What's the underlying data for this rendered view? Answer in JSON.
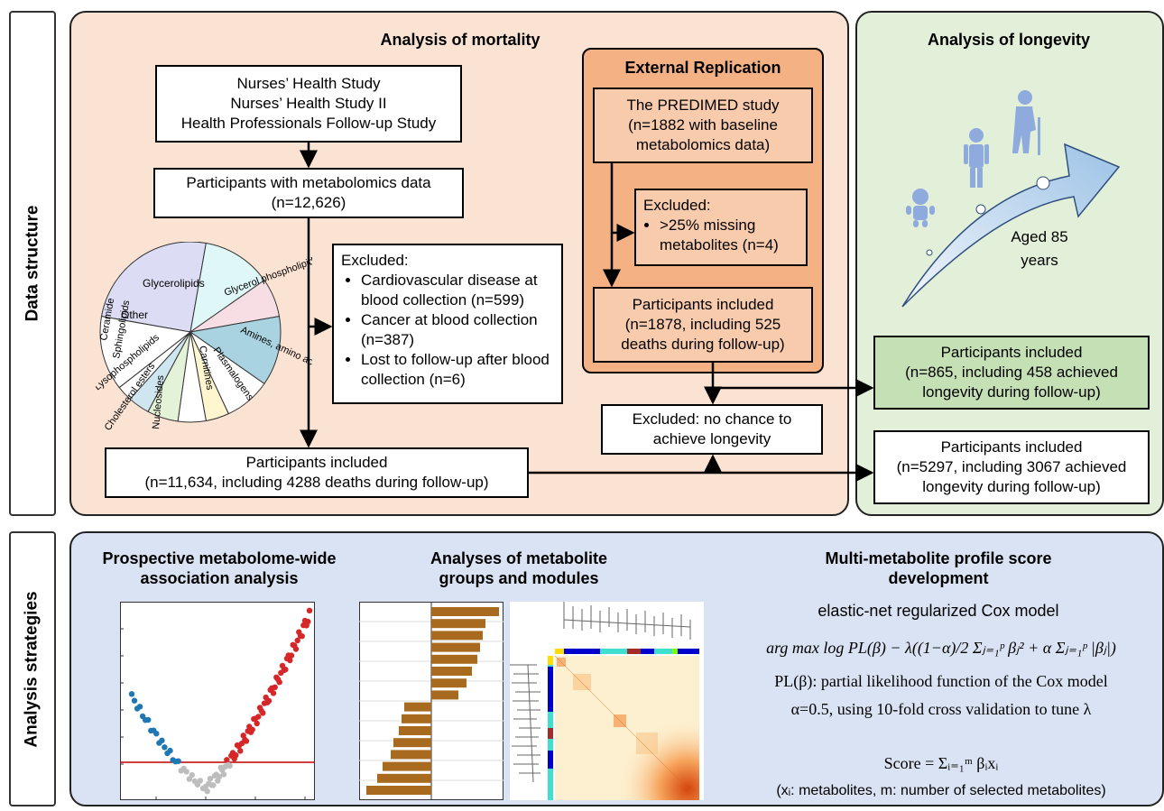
{
  "side_labels": {
    "data_structure": "Data structure",
    "analysis_strategies": "Analysis strategies"
  },
  "mortality": {
    "title": "Analysis of mortality",
    "cohorts": [
      "Nurses’ Health Study",
      "Nurses’ Health Study II",
      "Health Professionals Follow-up Study"
    ],
    "metabolomics": [
      "Participants with metabolomics data",
      "(n=12,626)"
    ],
    "excluded_title": "Excluded:",
    "excluded_items": [
      "Cardiovascular disease at blood collection (n=599)",
      "Cancer at blood collection (n=387)",
      "Lost to follow-up after blood collection (n=6)"
    ],
    "included": [
      "Participants included",
      "(n=11,634, including 4288 deaths during follow-up)"
    ],
    "no_chance": [
      "Excluded: no chance to",
      "achieve longevity"
    ]
  },
  "pie": {
    "labels": [
      "Glycerolipids",
      "Glycerol phospholipids",
      "Amines, amino acids",
      "Plasmalogens",
      "Carnitines",
      "Nucleosides",
      "Cholesterol esters",
      "Lysophospholipids",
      "Ceramide",
      "Sphingolipids",
      "Other"
    ],
    "slices": [
      {
        "name": "Glycerolipids",
        "color": "#dcdcf5"
      },
      {
        "name": "Glycerol phospholipids",
        "color": "#dff7f7"
      },
      {
        "name": "Amines, amino acids",
        "color": "#f7dde4"
      },
      {
        "name": "Plasmalogens",
        "color": "#a9d3e0"
      },
      {
        "name": "Carnitines",
        "color": "#ffffff"
      },
      {
        "name": "Nucleosides",
        "color": "#fff6d0"
      },
      {
        "name": "Cholesterol esters",
        "color": "#ffffff"
      },
      {
        "name": "Lysophospholipids",
        "color": "#e4f2d8"
      },
      {
        "name": "Sphingolipids",
        "color": "#cfe6f0"
      },
      {
        "name": "Ceramide",
        "color": "#ffffff"
      },
      {
        "name": "Other",
        "color": "#ffffff"
      }
    ]
  },
  "external": {
    "title": "External Replication",
    "predimed": [
      "The PREDIMED study",
      "(n=1882 with baseline",
      "metabolomics data)"
    ],
    "excluded_title": "Excluded:",
    "excluded_items": [
      ">25% missing metabolites (n=4)"
    ],
    "included": [
      "Participants included",
      "(n=1878, including 525",
      "deaths during follow-up)"
    ]
  },
  "longevity": {
    "title": "Analysis of longevity",
    "aged": [
      "Aged 85",
      "years"
    ],
    "included_ext": [
      "Participants included",
      "(n=865, including 458 achieved",
      "longevity during follow-up)"
    ],
    "included_main": [
      "Participants included",
      "(n=5297, including 3067 achieved",
      "longevity during follow-up)"
    ]
  },
  "strategies": {
    "col1_title": [
      "Prospective metabolome-wide",
      "association analysis"
    ],
    "col2_title": [
      "Analyses of metabolite",
      "groups and modules"
    ],
    "col3_title": [
      "Multi-metabolite profile score",
      "development"
    ],
    "model": "elastic-net regularized Cox model",
    "eq_argmax": "arg max log PL(β) − λ((1−α)/2 Σⱼ₌₁ᵖ βⱼ² + α Σⱼ₌₁ᵖ |βⱼ|)",
    "eq_pl": "PL(β): partial likelihood function of the Cox model",
    "eq_alpha": "α=0.5, using 10-fold cross validation to tune λ",
    "eq_score": "Score = Σᵢ₌₁ᵐ βᵢxᵢ",
    "eq_note": "(xᵢ: metabolites, m: number of selected metabolites)"
  },
  "colors": {
    "peach": "#fbe3d4",
    "green": "#e2efd9",
    "blue": "#dae3f3",
    "ext": "#f4b183",
    "bar": "#a86a1e",
    "red": "#d62728",
    "blue_pt": "#1f77b4",
    "grey_pt": "#bdbdbd"
  }
}
